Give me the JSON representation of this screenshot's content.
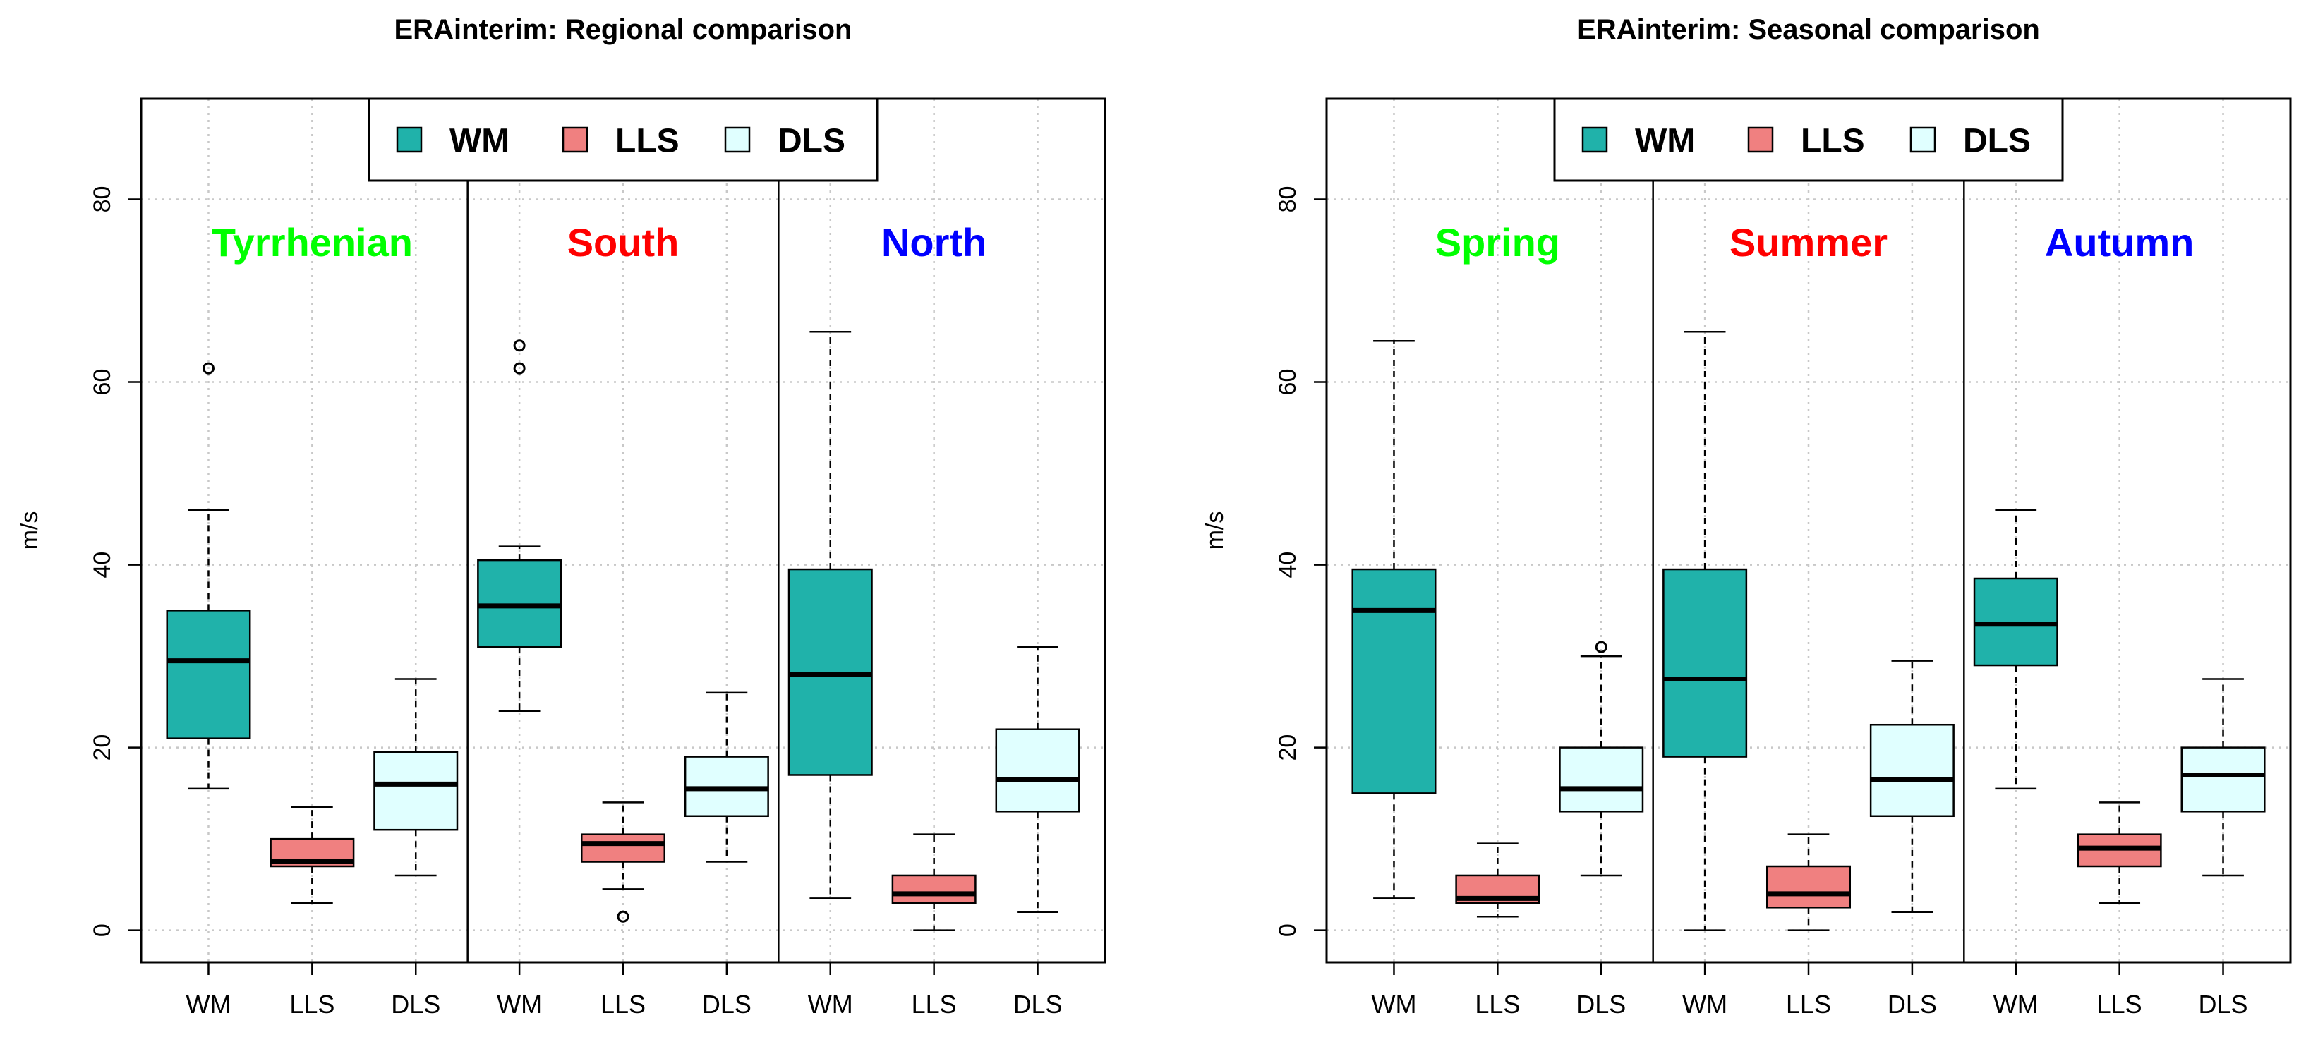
{
  "chart_data": [
    {
      "type": "boxplot",
      "title": "ERAinterim: Regional comparison",
      "xlabel": "",
      "ylabel": "m/s",
      "ylim": [
        -3.5,
        91
      ],
      "yticks": [
        0,
        20,
        40,
        60,
        80
      ],
      "grid": true,
      "legend": {
        "placement": "top-center",
        "entries": [
          "WM",
          "LLS",
          "DLS"
        ]
      },
      "series_colors": {
        "WM": "#20b2aa",
        "LLS": "#f08080",
        "DLS": "#e0ffff"
      },
      "groups": [
        {
          "label": "Tyrrhenian",
          "label_color": "#00ff00",
          "boxes": [
            {
              "name": "WM",
              "whisker_low": 15.5,
              "q1": 21.0,
              "median": 29.5,
              "q3": 35.0,
              "whisker_high": 46.0,
              "outliers": [
                61.5
              ]
            },
            {
              "name": "LLS",
              "whisker_low": 3.0,
              "q1": 7.0,
              "median": 7.5,
              "q3": 10.0,
              "whisker_high": 13.5,
              "outliers": []
            },
            {
              "name": "DLS",
              "whisker_low": 6.0,
              "q1": 11.0,
              "median": 16.0,
              "q3": 19.5,
              "whisker_high": 27.5,
              "outliers": []
            }
          ]
        },
        {
          "label": "South",
          "label_color": "#ff0000",
          "boxes": [
            {
              "name": "WM",
              "whisker_low": 24.0,
              "q1": 31.0,
              "median": 35.5,
              "q3": 40.5,
              "whisker_high": 42.0,
              "outliers": [
                61.5,
                64.0
              ]
            },
            {
              "name": "LLS",
              "whisker_low": 4.5,
              "q1": 7.5,
              "median": 9.5,
              "q3": 10.5,
              "whisker_high": 14.0,
              "outliers": [
                1.5
              ]
            },
            {
              "name": "DLS",
              "whisker_low": 7.5,
              "q1": 12.5,
              "median": 15.5,
              "q3": 19.0,
              "whisker_high": 26.0,
              "outliers": []
            }
          ]
        },
        {
          "label": "North",
          "label_color": "#0000ff",
          "boxes": [
            {
              "name": "WM",
              "whisker_low": 3.5,
              "q1": 17.0,
              "median": 28.0,
              "q3": 39.5,
              "whisker_high": 65.5,
              "outliers": []
            },
            {
              "name": "LLS",
              "whisker_low": 0.0,
              "q1": 3.0,
              "median": 4.0,
              "q3": 6.0,
              "whisker_high": 10.5,
              "outliers": []
            },
            {
              "name": "DLS",
              "whisker_low": 2.0,
              "q1": 13.0,
              "median": 16.5,
              "q3": 22.0,
              "whisker_high": 31.0,
              "outliers": []
            }
          ]
        }
      ]
    },
    {
      "type": "boxplot",
      "title": "ERAinterim: Seasonal comparison",
      "xlabel": "",
      "ylabel": "m/s",
      "ylim": [
        -3.5,
        91
      ],
      "yticks": [
        0,
        20,
        40,
        60,
        80
      ],
      "grid": true,
      "legend": {
        "placement": "top-center",
        "entries": [
          "WM",
          "LLS",
          "DLS"
        ]
      },
      "series_colors": {
        "WM": "#20b2aa",
        "LLS": "#f08080",
        "DLS": "#e0ffff"
      },
      "groups": [
        {
          "label": "Spring",
          "label_color": "#00ff00",
          "boxes": [
            {
              "name": "WM",
              "whisker_low": 3.5,
              "q1": 15.0,
              "median": 35.0,
              "q3": 39.5,
              "whisker_high": 64.5,
              "outliers": []
            },
            {
              "name": "LLS",
              "whisker_low": 1.5,
              "q1": 3.0,
              "median": 3.5,
              "q3": 6.0,
              "whisker_high": 9.5,
              "outliers": []
            },
            {
              "name": "DLS",
              "whisker_low": 6.0,
              "q1": 13.0,
              "median": 15.5,
              "q3": 20.0,
              "whisker_high": 30.0,
              "outliers": [
                31.0
              ]
            }
          ]
        },
        {
          "label": "Summer",
          "label_color": "#ff0000",
          "boxes": [
            {
              "name": "WM",
              "whisker_low": 0.0,
              "q1": 19.0,
              "median": 27.5,
              "q3": 39.5,
              "whisker_high": 65.5,
              "outliers": []
            },
            {
              "name": "LLS",
              "whisker_low": 0.0,
              "q1": 2.5,
              "median": 4.0,
              "q3": 7.0,
              "whisker_high": 10.5,
              "outliers": []
            },
            {
              "name": "DLS",
              "whisker_low": 2.0,
              "q1": 12.5,
              "median": 16.5,
              "q3": 22.5,
              "whisker_high": 29.5,
              "outliers": []
            }
          ]
        },
        {
          "label": "Autumn",
          "label_color": "#0000ff",
          "boxes": [
            {
              "name": "WM",
              "whisker_low": 15.5,
              "q1": 29.0,
              "median": 33.5,
              "q3": 38.5,
              "whisker_high": 46.0,
              "outliers": []
            },
            {
              "name": "LLS",
              "whisker_low": 3.0,
              "q1": 7.0,
              "median": 9.0,
              "q3": 10.5,
              "whisker_high": 14.0,
              "outliers": []
            },
            {
              "name": "DLS",
              "whisker_low": 6.0,
              "q1": 13.0,
              "median": 17.0,
              "q3": 20.0,
              "whisker_high": 27.5,
              "outliers": []
            }
          ]
        }
      ]
    }
  ]
}
